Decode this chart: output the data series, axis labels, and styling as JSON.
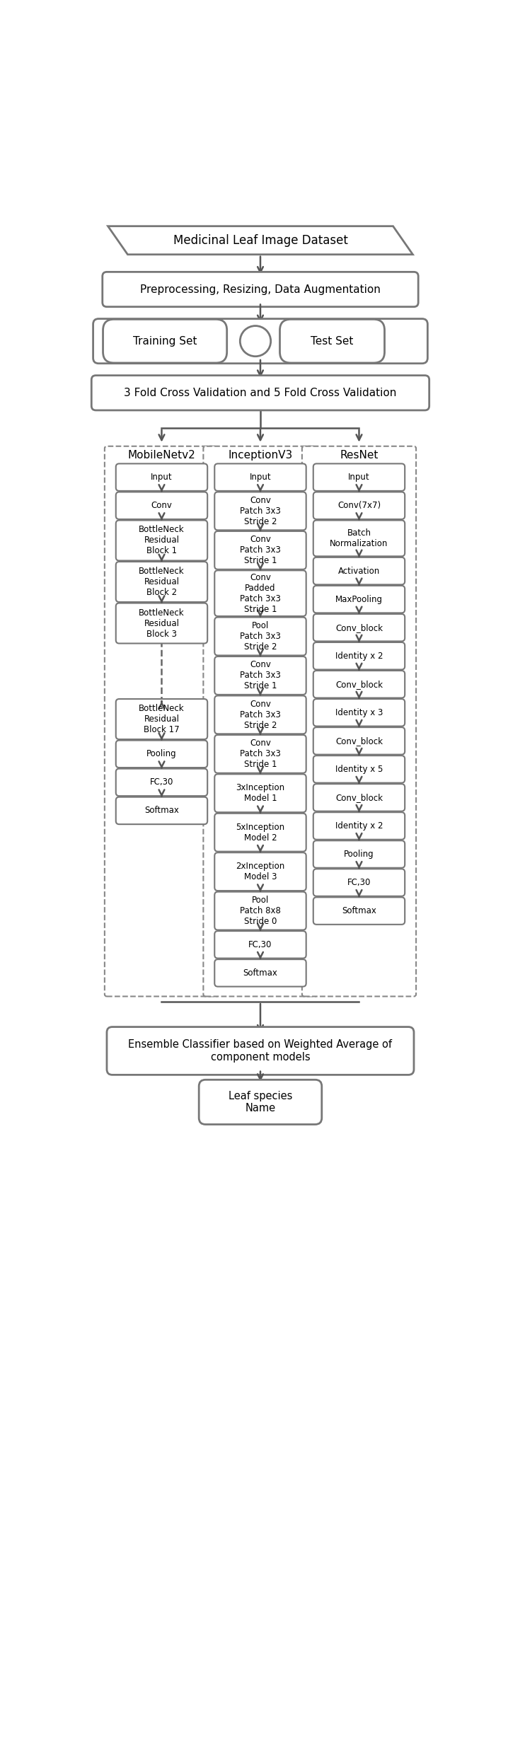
{
  "fig_width": 7.18,
  "fig_height": 24.78,
  "bg_color": "#ffffff",
  "box_facecolor": "#ffffff",
  "box_edgecolor": "#777777",
  "arrow_color": "#555555",
  "text_color": "#000000",
  "mobilenet_blocks": [
    "Input",
    "Conv",
    "BottleNeck\nResidual\nBlock 1",
    "BottleNeck\nResidual\nBlock 2",
    "BottleNeck\nResidual\nBlock 3",
    "DASHED",
    "BottleNeck\nResidual\nBlock 17",
    "Pooling",
    "FC,30",
    "Softmax"
  ],
  "inception_blocks": [
    "Input",
    "Conv\nPatch 3x3\nStride 2",
    "Conv\nPatch 3x3\nStride 1",
    "Conv\nPadded\nPatch 3x3\nStride 1",
    "Pool\nPatch 3x3\nStride 2",
    "Conv\nPatch 3x3\nStride 1",
    "Conv\nPatch 3x3\nStride 2",
    "Conv\nPatch 3x3\nStride 1",
    "3xInception\nModel 1",
    "5xInception\nModel 2",
    "2xInception\nModel 3",
    "Pool\nPatch 8x8\nStride 0",
    "FC,30",
    "Softmax"
  ],
  "resnet_blocks": [
    "Input",
    "Conv(7x7)",
    "Batch\nNormalization",
    "Activation",
    "MaxPooling",
    "Conv_block",
    "Identity x 2",
    "Conv_block",
    "Identity x 3",
    "Conv_block",
    "Identity x 5",
    "Conv_block",
    "Identity x 2",
    "Pooling",
    "FC,30",
    "Softmax"
  ]
}
